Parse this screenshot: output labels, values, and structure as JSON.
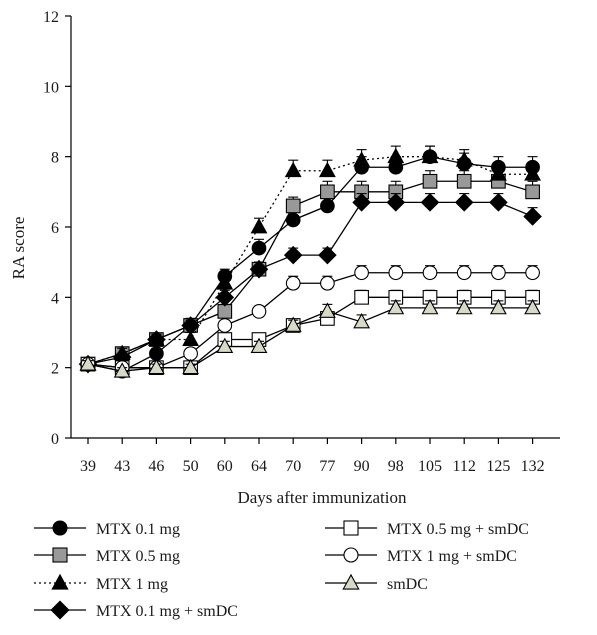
{
  "chart_data": {
    "type": "line",
    "xlabel": "Days after immunization",
    "ylabel": "RA score",
    "ylim": [
      0,
      12
    ],
    "yticks": [
      "0",
      "2",
      "4",
      "6",
      "8",
      "10",
      "12"
    ],
    "categories": [
      "39",
      "43",
      "46",
      "50",
      "60",
      "64",
      "70",
      "77",
      "90",
      "98",
      "105",
      "112",
      "125",
      "132"
    ],
    "error_bars": "vertical, upper caps",
    "grid": false,
    "legend_position": "bottom",
    "series": [
      {
        "name": "MTX 0.1 mg",
        "marker": "circle",
        "fill": "#000000",
        "line": "solid",
        "values": [
          2.1,
          1.9,
          2.4,
          3.2,
          4.6,
          5.4,
          6.2,
          6.6,
          7.7,
          7.7,
          8.0,
          7.8,
          7.7,
          7.7
        ],
        "errors": [
          0.1,
          0.1,
          0.15,
          0.2,
          0.2,
          0.25,
          0.3,
          0.3,
          0.3,
          0.3,
          0.3,
          0.3,
          0.3,
          0.3
        ]
      },
      {
        "name": "MTX 0.5 mg",
        "marker": "square",
        "fill": "#999999",
        "line": "solid",
        "values": [
          2.1,
          2.4,
          2.8,
          3.2,
          3.6,
          4.8,
          6.6,
          7.0,
          7.0,
          7.0,
          7.3,
          7.3,
          7.3,
          7.0
        ],
        "errors": [
          0.1,
          0.15,
          0.15,
          0.2,
          0.2,
          0.2,
          0.25,
          0.3,
          0.3,
          0.3,
          0.3,
          0.3,
          0.3,
          0.3
        ]
      },
      {
        "name": "MTX 1 mg",
        "marker": "triangle",
        "fill": "#000000",
        "line": "dotted",
        "values": [
          2.1,
          2.4,
          2.8,
          2.8,
          4.4,
          6.0,
          7.6,
          7.6,
          7.9,
          8.0,
          8.0,
          7.9,
          7.5,
          7.5
        ],
        "errors": [
          0.1,
          0.15,
          0.15,
          0.2,
          0.2,
          0.25,
          0.3,
          0.3,
          0.3,
          0.3,
          0.3,
          0.3,
          0.3,
          0.3
        ]
      },
      {
        "name": "MTX 0.1 mg + smDC",
        "marker": "diamond",
        "fill": "#000000",
        "line": "solid",
        "values": [
          2.1,
          2.3,
          2.8,
          3.2,
          4.0,
          4.8,
          5.2,
          5.2,
          6.7,
          6.7,
          6.7,
          6.7,
          6.7,
          6.3
        ],
        "errors": [
          0.1,
          0.1,
          0.15,
          0.15,
          0.2,
          0.2,
          0.2,
          0.2,
          0.25,
          0.25,
          0.25,
          0.25,
          0.25,
          0.25
        ]
      },
      {
        "name": "MTX 0.5 mg + smDC",
        "marker": "square",
        "fill": "#ffffff",
        "line": "solid",
        "values": [
          2.1,
          2.0,
          2.0,
          2.0,
          2.8,
          2.8,
          3.2,
          3.4,
          4.0,
          4.0,
          4.0,
          4.0,
          4.0,
          4.0
        ],
        "errors": [
          0.1,
          0.1,
          0.1,
          0.1,
          0.15,
          0.15,
          0.15,
          0.15,
          0.2,
          0.2,
          0.2,
          0.2,
          0.2,
          0.2
        ]
      },
      {
        "name": "MTX 1 mg + smDC",
        "marker": "circle",
        "fill": "#ffffff",
        "line": "solid",
        "values": [
          2.1,
          2.0,
          2.0,
          2.4,
          3.2,
          3.6,
          4.4,
          4.4,
          4.7,
          4.7,
          4.7,
          4.7,
          4.7,
          4.7
        ],
        "errors": [
          0.1,
          0.1,
          0.1,
          0.15,
          0.15,
          0.15,
          0.2,
          0.2,
          0.2,
          0.2,
          0.2,
          0.2,
          0.2,
          0.2
        ]
      },
      {
        "name": "smDC",
        "marker": "triangle",
        "fill": "#d9d9c8",
        "line": "solid",
        "values": [
          2.1,
          1.9,
          2.0,
          2.0,
          2.6,
          2.6,
          3.2,
          3.6,
          3.3,
          3.7,
          3.7,
          3.7,
          3.7,
          3.7
        ],
        "errors": [
          0.1,
          0.1,
          0.1,
          0.1,
          0.15,
          0.15,
          0.15,
          0.2,
          0.2,
          0.2,
          0.2,
          0.2,
          0.2,
          0.2
        ]
      }
    ]
  }
}
